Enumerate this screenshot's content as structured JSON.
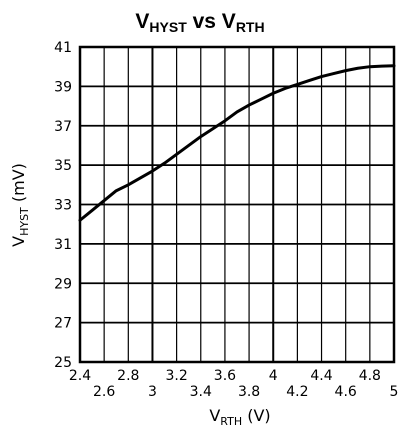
{
  "chart_data": {
    "type": "line",
    "title": {
      "main": "V",
      "sub1": "HYST",
      "mid": " vs V",
      "sub2": "RTH"
    },
    "xlabel": {
      "main": "V",
      "sub": "RTH",
      "unit": " (V)"
    },
    "ylabel": {
      "main": "V",
      "sub": "HYST",
      "unit": " (mV)"
    },
    "xlim": [
      2.4,
      5.0
    ],
    "ylim": [
      25,
      41
    ],
    "grid": true,
    "x_ticks_upper": [
      "2.4",
      "2.8",
      "3.2",
      "3.6",
      "4",
      "4.4",
      "4.8"
    ],
    "x_ticks_lower": [
      "2.6",
      "3",
      "3.4",
      "3.8",
      "4.2",
      "4.6",
      "5"
    ],
    "y_ticks": [
      "25",
      "27",
      "29",
      "31",
      "33",
      "35",
      "37",
      "39",
      "41"
    ],
    "series": [
      {
        "x": [
          2.4,
          2.5,
          2.6,
          2.7,
          2.8,
          2.9,
          3.0,
          3.1,
          3.2,
          3.3,
          3.4,
          3.5,
          3.6,
          3.7,
          3.8,
          3.9,
          4.0,
          4.1,
          4.2,
          4.3,
          4.4,
          4.5,
          4.6,
          4.7,
          4.8,
          4.9,
          5.0
        ],
        "y": [
          32.2,
          32.7,
          33.2,
          33.7,
          34.0,
          34.35,
          34.7,
          35.1,
          35.55,
          36.0,
          36.45,
          36.85,
          37.25,
          37.7,
          38.05,
          38.35,
          38.65,
          38.9,
          39.1,
          39.3,
          39.5,
          39.65,
          39.8,
          39.92,
          40.0,
          40.03,
          40.05
        ]
      }
    ]
  }
}
